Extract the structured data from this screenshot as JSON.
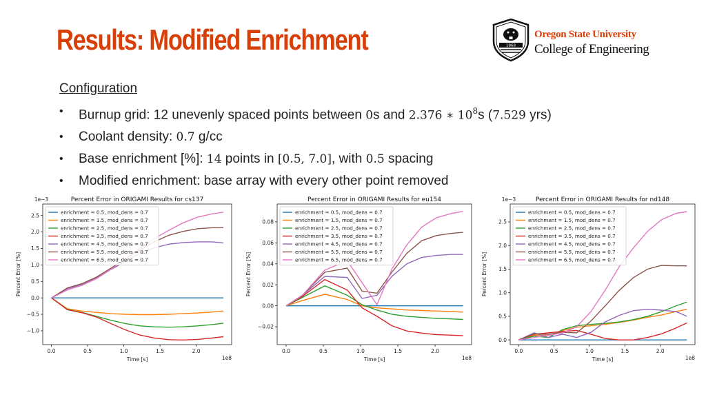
{
  "slide": {
    "title": "Results: Modified Enrichment",
    "logo": {
      "university": "Oregon State University",
      "college": "College of Engineering",
      "seal_text": "1868"
    },
    "config_heading": "Configuration",
    "bullets": [
      {
        "parts": [
          "Burnup grid: 12 unevenly spaced points between ",
          "0",
          "s and ",
          "2.376 ∗ 10",
          "8",
          "s (",
          "7.529",
          " yrs)"
        ]
      },
      {
        "parts": [
          "Coolant density: ",
          "0.7",
          " g/cc"
        ]
      },
      {
        "parts": [
          "Base enrichment [%]: ",
          "14",
          " points in ",
          "[0.5, 7.0]",
          ", with ",
          "0.5",
          " spacing"
        ]
      },
      {
        "parts": [
          "Modified enrichment: base array with every other point removed"
        ]
      }
    ]
  },
  "colors": {
    "accent": "#d73f09",
    "series": [
      "#1f77b4",
      "#ff7f0e",
      "#2ca02c",
      "#d62728",
      "#9467bd",
      "#8c564b",
      "#e377c2"
    ]
  },
  "chart_data": [
    {
      "type": "line",
      "title": "Percent Error in ORIGAMI Results for cs137",
      "xlabel": "Time [s]",
      "ylabel": "Percent Error [%]",
      "x_offset_label": "1e8",
      "y_offset_label": "1e−3",
      "xlim": [
        -0.12,
        2.49
      ],
      "ylim": [
        -1.42,
        2.85
      ],
      "xticks": [
        0.0,
        0.5,
        1.0,
        1.5,
        2.0
      ],
      "xtick_labels": [
        "0.0",
        "0.5",
        "1.0",
        "1.5",
        "2.0"
      ],
      "yticks": [
        -1.0,
        -0.5,
        0.0,
        0.5,
        1.0,
        1.5,
        2.0,
        2.5
      ],
      "ytick_labels": [
        "−1.0",
        "−0.5",
        "0.0",
        "0.5",
        "1.0",
        "1.5",
        "2.0",
        "2.5"
      ],
      "legend_position": "top-left",
      "x": [
        0.0,
        0.22,
        0.42,
        0.62,
        0.82,
        1.02,
        1.22,
        1.42,
        1.62,
        1.82,
        2.02,
        2.22,
        2.376
      ],
      "series": [
        {
          "name": "enrichment = 0.5, mod_dens = 0.7",
          "values": [
            0,
            0,
            0,
            0,
            0,
            0,
            0,
            0,
            0,
            0,
            0,
            0,
            0
          ]
        },
        {
          "name": "enrichment = 1.5, mod_dens = 0.7",
          "values": [
            0,
            -0.33,
            -0.4,
            -0.44,
            -0.48,
            -0.5,
            -0.51,
            -0.51,
            -0.5,
            -0.48,
            -0.46,
            -0.43,
            -0.4
          ]
        },
        {
          "name": "enrichment = 2.5, mod_dens = 0.7",
          "values": [
            0,
            -0.35,
            -0.44,
            -0.56,
            -0.68,
            -0.78,
            -0.85,
            -0.88,
            -0.89,
            -0.88,
            -0.85,
            -0.81,
            -0.77
          ]
        },
        {
          "name": "enrichment = 3.5, mod_dens = 0.7",
          "values": [
            0,
            -0.36,
            -0.45,
            -0.58,
            -0.78,
            -0.97,
            -1.13,
            -1.22,
            -1.27,
            -1.28,
            -1.26,
            -1.22,
            -1.18
          ]
        },
        {
          "name": "enrichment = 4.5, mod_dens = 0.7",
          "values": [
            0,
            0.28,
            0.4,
            0.6,
            0.86,
            1.1,
            1.35,
            1.52,
            1.63,
            1.68,
            1.7,
            1.7,
            1.67
          ]
        },
        {
          "name": "enrichment = 5.5, mod_dens = 0.7",
          "values": [
            0,
            0.3,
            0.43,
            0.63,
            0.9,
            1.18,
            1.45,
            1.7,
            1.9,
            2.02,
            2.1,
            2.13,
            2.13
          ]
        },
        {
          "name": "enrichment = 6.5, mod_dens = 0.7",
          "values": [
            0,
            0.24,
            0.38,
            0.58,
            0.86,
            1.18,
            1.5,
            1.8,
            2.05,
            2.28,
            2.45,
            2.55,
            2.6
          ]
        }
      ]
    },
    {
      "type": "line",
      "title": "Percent Error in ORIGAMI Results for eu154",
      "xlabel": "Time [s]",
      "ylabel": "Percent Error [%]",
      "x_offset_label": "1e8",
      "y_offset_label": "",
      "xlim": [
        -0.12,
        2.49
      ],
      "ylim": [
        -0.037,
        0.097
      ],
      "xticks": [
        0.0,
        0.5,
        1.0,
        1.5,
        2.0
      ],
      "xtick_labels": [
        "0.0",
        "0.5",
        "1.0",
        "1.5",
        "2.0"
      ],
      "yticks": [
        -0.02,
        0.0,
        0.02,
        0.04,
        0.06,
        0.08
      ],
      "ytick_labels": [
        "−0.02",
        "0.00",
        "0.02",
        "0.04",
        "0.06",
        "0.08"
      ],
      "legend_position": "top-left",
      "x": [
        0.0,
        0.22,
        0.52,
        0.82,
        1.02,
        1.22,
        1.42,
        1.62,
        1.82,
        2.02,
        2.22,
        2.376
      ],
      "series": [
        {
          "name": "enrichment = 0.5, mod_dens = 0.7",
          "values": [
            0,
            0,
            0,
            0,
            0,
            0,
            0,
            0,
            0,
            0,
            0,
            0
          ]
        },
        {
          "name": "enrichment = 1.5, mod_dens = 0.7",
          "values": [
            0,
            0.005,
            0.011,
            0.006,
            0.0,
            -0.002,
            -0.003,
            -0.004,
            -0.0045,
            -0.005,
            -0.0055,
            -0.006
          ]
        },
        {
          "name": "enrichment = 2.5, mod_dens = 0.7",
          "values": [
            0,
            0.008,
            0.019,
            0.01,
            0.001,
            -0.004,
            -0.008,
            -0.01,
            -0.011,
            -0.012,
            -0.0125,
            -0.013
          ]
        },
        {
          "name": "enrichment = 3.5, mod_dens = 0.7",
          "values": [
            0,
            0.009,
            0.025,
            0.015,
            -0.002,
            -0.01,
            -0.019,
            -0.024,
            -0.026,
            -0.0275,
            -0.028,
            -0.0285
          ]
        },
        {
          "name": "enrichment = 4.5, mod_dens = 0.7",
          "values": [
            0,
            0.01,
            0.028,
            0.027,
            0.007,
            0.01,
            0.028,
            0.04,
            0.046,
            0.048,
            0.049,
            0.049
          ]
        },
        {
          "name": "enrichment = 5.5, mod_dens = 0.7",
          "values": [
            0,
            0.01,
            0.032,
            0.036,
            0.014,
            0.012,
            0.032,
            0.05,
            0.062,
            0.067,
            0.069,
            0.07
          ]
        },
        {
          "name": "enrichment = 6.5, mod_dens = 0.7",
          "values": [
            0,
            0.01,
            0.034,
            0.043,
            0.022,
            0.001,
            0.035,
            0.058,
            0.075,
            0.084,
            0.088,
            0.09
          ]
        }
      ]
    },
    {
      "type": "line",
      "title": "Percent Error in ORIGAMI Results for nd148",
      "xlabel": "Time [s]",
      "ylabel": "Percent Error [%]",
      "x_offset_label": "1e8",
      "y_offset_label": "1e−3",
      "xlim": [
        -0.12,
        2.49
      ],
      "ylim": [
        -0.1,
        2.88
      ],
      "xticks": [
        0.0,
        0.5,
        1.0,
        1.5,
        2.0
      ],
      "xtick_labels": [
        "0.0",
        "0.5",
        "1.0",
        "1.5",
        "2.0"
      ],
      "yticks": [
        0.0,
        0.5,
        1.0,
        1.5,
        2.0,
        2.5
      ],
      "ytick_labels": [
        "0.0",
        "0.5",
        "1.0",
        "1.5",
        "2.0",
        "2.5"
      ],
      "legend_position": "top-left",
      "x": [
        0.0,
        0.22,
        0.42,
        0.62,
        0.82,
        1.02,
        1.22,
        1.42,
        1.62,
        1.82,
        2.02,
        2.22,
        2.376
      ],
      "series": [
        {
          "name": "enrichment = 0.5, mod_dens = 0.7",
          "values": [
            0,
            0,
            0,
            0,
            0,
            0,
            0,
            0,
            0,
            0,
            0,
            0,
            0
          ]
        },
        {
          "name": "enrichment = 1.5, mod_dens = 0.7",
          "values": [
            0,
            0.1,
            0.1,
            0.2,
            0.27,
            0.3,
            0.33,
            0.37,
            0.42,
            0.48,
            0.53,
            0.6,
            0.65
          ]
        },
        {
          "name": "enrichment = 2.5, mod_dens = 0.7",
          "values": [
            0,
            0.08,
            0.05,
            0.22,
            0.3,
            0.33,
            0.35,
            0.38,
            0.43,
            0.5,
            0.6,
            0.72,
            0.8
          ]
        },
        {
          "name": "enrichment = 3.5, mod_dens = 0.7",
          "values": [
            0,
            0.12,
            0.15,
            0.18,
            0.2,
            0.12,
            0.03,
            0.0,
            0.0,
            0.05,
            0.13,
            0.25,
            0.36
          ]
        },
        {
          "name": "enrichment = 4.5, mod_dens = 0.7",
          "values": [
            0,
            0.15,
            0.05,
            0.12,
            0.05,
            0.16,
            0.38,
            0.52,
            0.62,
            0.65,
            0.63,
            0.6,
            0.5
          ]
        },
        {
          "name": "enrichment = 5.5, mod_dens = 0.7",
          "values": [
            0,
            0.13,
            0.12,
            0.16,
            0.15,
            0.4,
            0.72,
            1.05,
            1.32,
            1.5,
            1.58,
            1.57,
            1.57
          ]
        },
        {
          "name": "enrichment = 6.5, mod_dens = 0.7",
          "values": [
            0,
            0.05,
            0.1,
            0.15,
            0.28,
            0.6,
            1.05,
            1.55,
            1.95,
            2.3,
            2.55,
            2.68,
            2.72
          ]
        }
      ]
    }
  ]
}
